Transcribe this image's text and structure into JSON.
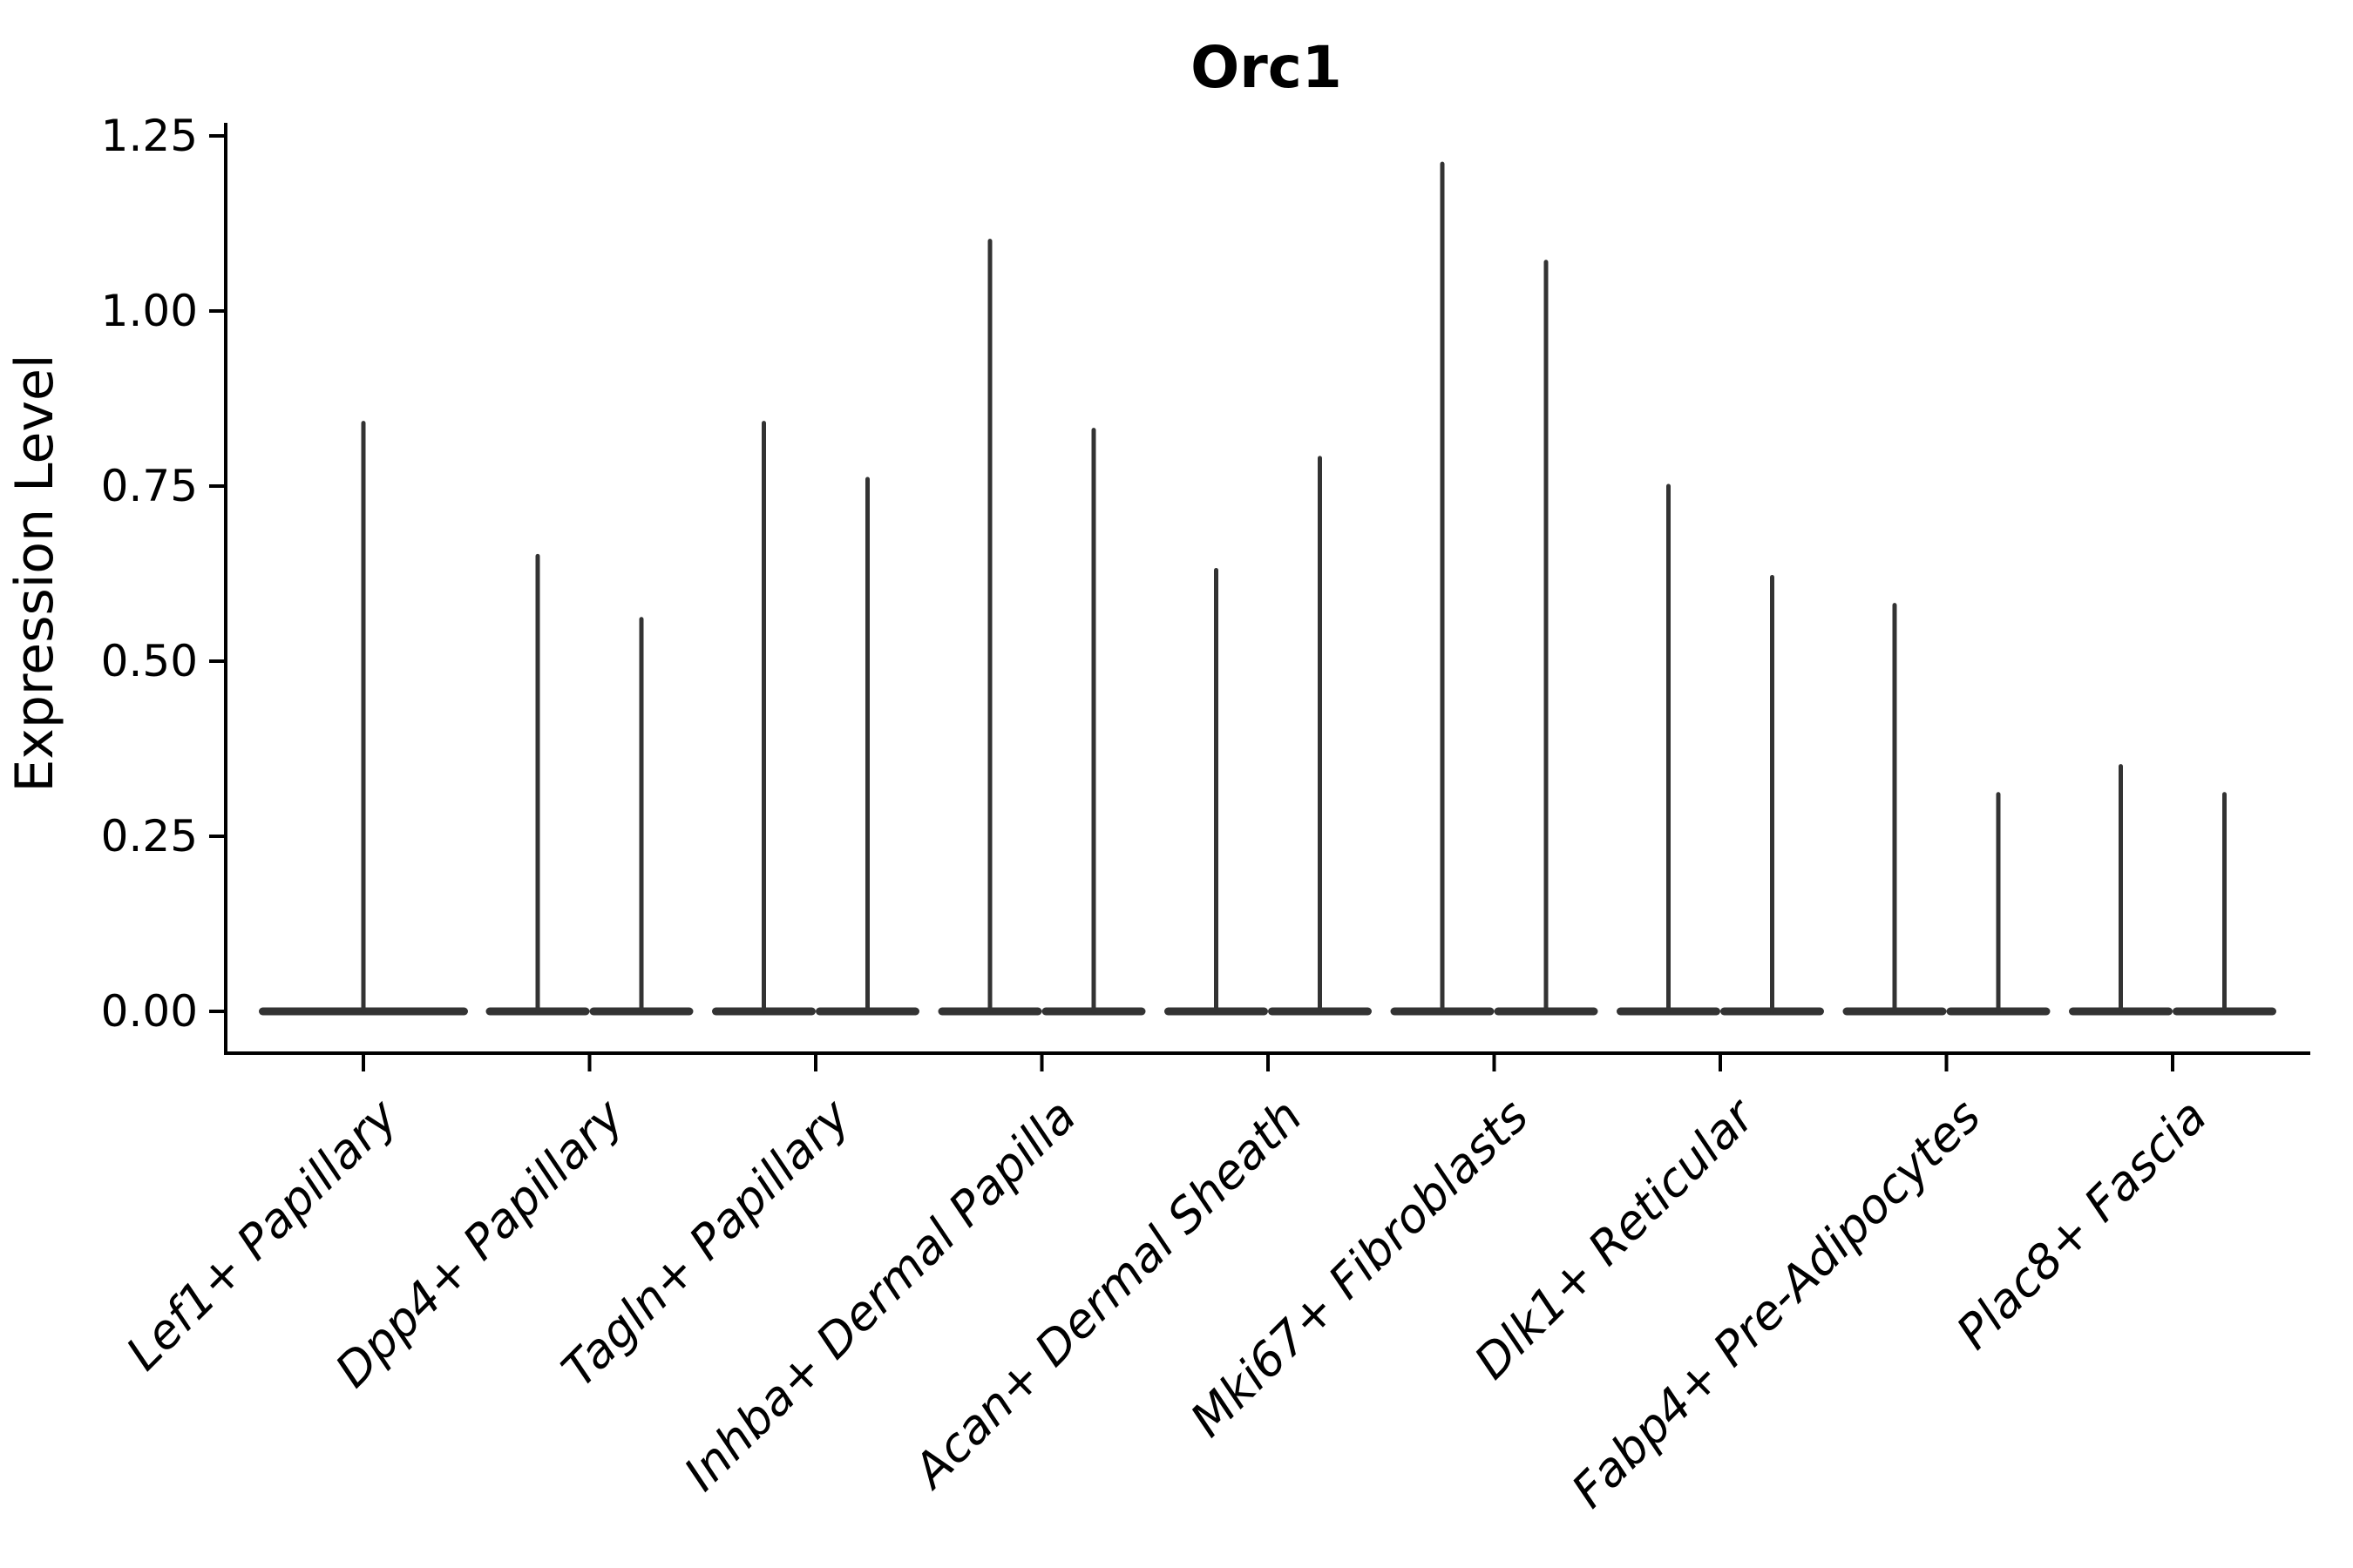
{
  "chart_data": {
    "type": "violin",
    "title": "Orc1",
    "ylabel": "Expression Level",
    "xlabel": "",
    "ylim": [
      0,
      1.25
    ],
    "yticks": [
      {
        "value": 0.0,
        "label": "0.00"
      },
      {
        "value": 0.25,
        "label": "0.25"
      },
      {
        "value": 0.5,
        "label": "0.50"
      },
      {
        "value": 0.75,
        "label": "0.75"
      },
      {
        "value": 1.0,
        "label": "1.00"
      },
      {
        "value": 1.25,
        "label": "1.25"
      }
    ],
    "categories": [
      "Lef1+ Papillary",
      "Dpp4+ Papillary",
      "Tagln+ Papillary",
      "Inhba+ Dermal Papilla",
      "Acan+ Dermal Sheath",
      "Mki67+ Fibroblasts",
      "Dlk1+ Reticular",
      "Fabp4+ Pre-Adipocytes",
      "Plac8+ Fascia"
    ],
    "violins": [
      {
        "category": "Lef1+ Papillary",
        "max_values": [
          0.84
        ]
      },
      {
        "category": "Dpp4+ Papillary",
        "max_values": [
          0.65,
          0.56
        ]
      },
      {
        "category": "Tagln+ Papillary",
        "max_values": [
          0.84,
          0.76
        ]
      },
      {
        "category": "Inhba+ Dermal Papilla",
        "max_values": [
          1.1,
          0.83
        ]
      },
      {
        "category": "Acan+ Dermal Sheath",
        "max_values": [
          0.63,
          0.79
        ]
      },
      {
        "category": "Mki67+ Fibroblasts",
        "max_values": [
          1.21,
          1.07
        ]
      },
      {
        "category": "Dlk1+ Reticular",
        "max_values": [
          0.75,
          0.62
        ]
      },
      {
        "category": "Fabp4+ Pre-Adipocytes",
        "max_values": [
          0.58,
          0.31
        ]
      },
      {
        "category": "Plac8+ Fascia",
        "max_values": [
          0.35,
          0.31
        ]
      }
    ],
    "baseline_value": 0.0,
    "grid": false,
    "legend": null,
    "x_tick_rotation": 45,
    "colors": {
      "violin_line": "#333333",
      "axis": "#000000",
      "background": "#ffffff"
    }
  }
}
